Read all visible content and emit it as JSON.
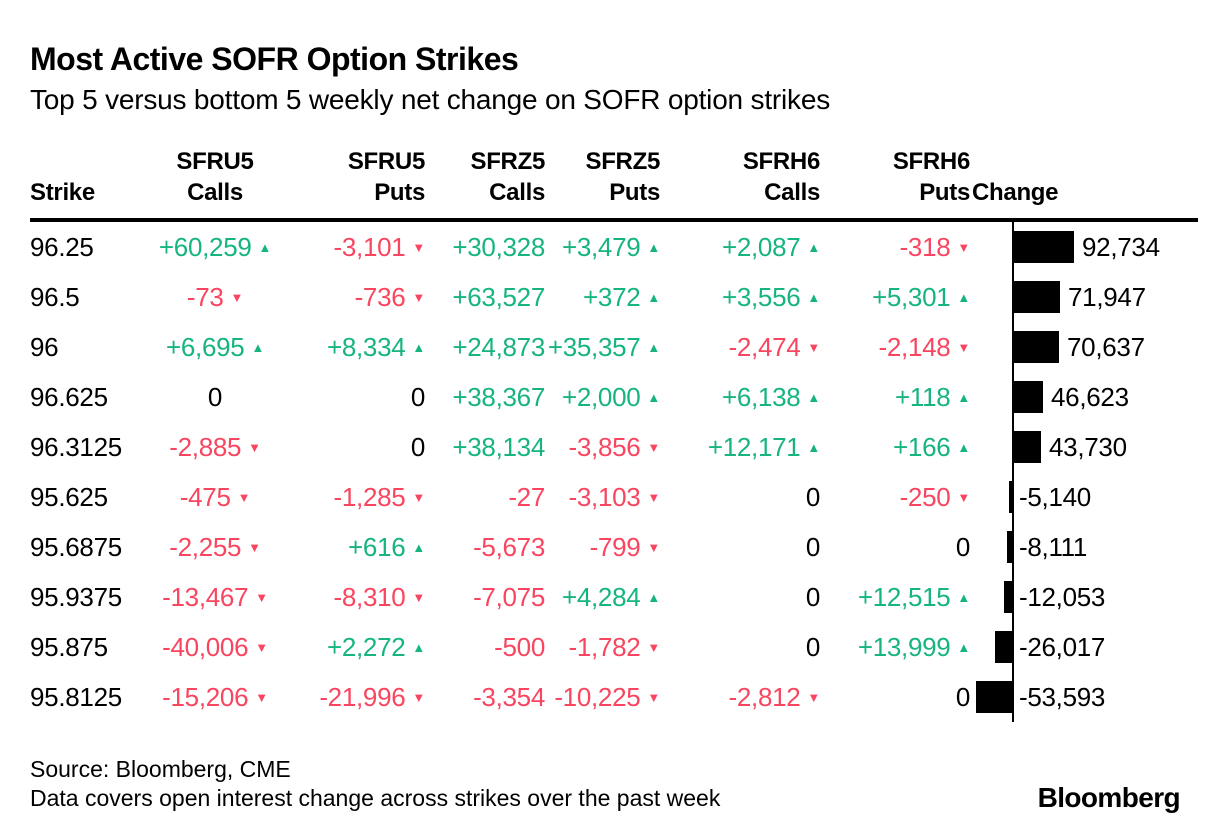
{
  "title": "Most Active SOFR Option Strikes",
  "subtitle": "Top 5 versus bottom 5 weekly net change on SOFR option strikes",
  "colors": {
    "green": "#17b57e",
    "red": "#f9455f",
    "text": "#000000",
    "bar": "#000000"
  },
  "icons": {
    "up": "▲",
    "down": "▼"
  },
  "table": {
    "columns": [
      {
        "line1": "",
        "line2": "Strike"
      },
      {
        "line1": "SFRU5",
        "line2": "Calls"
      },
      {
        "line1": "SFRU5",
        "line2": "Puts"
      },
      {
        "line1": "SFRZ5",
        "line2": "Calls"
      },
      {
        "line1": "SFRZ5",
        "line2": "Puts"
      },
      {
        "line1": "SFRH6",
        "line2": "Calls"
      },
      {
        "line1": "SFRH6",
        "line2": "Puts"
      },
      {
        "line1": "",
        "line2": "Change"
      }
    ],
    "rows": [
      {
        "strike": "96.25",
        "cells": [
          {
            "v": "+60,259",
            "d": "up"
          },
          {
            "v": "-3,101",
            "d": "down"
          },
          {
            "v": "+30,328",
            "d": ""
          },
          {
            "v": "+3,479",
            "d": "up"
          },
          {
            "v": "+2,087",
            "d": "up"
          },
          {
            "v": "-318",
            "d": "down"
          }
        ],
        "change": 92734,
        "change_label": "92,734"
      },
      {
        "strike": "96.5",
        "cells": [
          {
            "v": "-73",
            "d": "down"
          },
          {
            "v": "-736",
            "d": "down"
          },
          {
            "v": "+63,527",
            "d": ""
          },
          {
            "v": "+372",
            "d": "up"
          },
          {
            "v": "+3,556",
            "d": "up"
          },
          {
            "v": "+5,301",
            "d": "up"
          }
        ],
        "change": 71947,
        "change_label": "71,947"
      },
      {
        "strike": "96",
        "cells": [
          {
            "v": "+6,695",
            "d": "up"
          },
          {
            "v": "+8,334",
            "d": "up"
          },
          {
            "v": "+24,873",
            "d": ""
          },
          {
            "v": "+35,357",
            "d": "up"
          },
          {
            "v": "-2,474",
            "d": "down"
          },
          {
            "v": "-2,148",
            "d": "down"
          }
        ],
        "change": 70637,
        "change_label": "70,637"
      },
      {
        "strike": "96.625",
        "cells": [
          {
            "v": "0",
            "d": ""
          },
          {
            "v": "0",
            "d": ""
          },
          {
            "v": "+38,367",
            "d": ""
          },
          {
            "v": "+2,000",
            "d": "up"
          },
          {
            "v": "+6,138",
            "d": "up"
          },
          {
            "v": "+118",
            "d": "up"
          }
        ],
        "change": 46623,
        "change_label": "46,623"
      },
      {
        "strike": "96.3125",
        "cells": [
          {
            "v": "-2,885",
            "d": "down"
          },
          {
            "v": "0",
            "d": ""
          },
          {
            "v": "+38,134",
            "d": ""
          },
          {
            "v": "-3,856",
            "d": "down"
          },
          {
            "v": "+12,171",
            "d": "up"
          },
          {
            "v": "+166",
            "d": "up"
          }
        ],
        "change": 43730,
        "change_label": "43,730"
      },
      {
        "strike": "95.625",
        "cells": [
          {
            "v": "-475",
            "d": "down"
          },
          {
            "v": "-1,285",
            "d": "down"
          },
          {
            "v": "-27",
            "d": ""
          },
          {
            "v": "-3,103",
            "d": "down"
          },
          {
            "v": "0",
            "d": ""
          },
          {
            "v": "-250",
            "d": "down"
          }
        ],
        "change": -5140,
        "change_label": "-5,140"
      },
      {
        "strike": "95.6875",
        "cells": [
          {
            "v": "-2,255",
            "d": "down"
          },
          {
            "v": "+616",
            "d": "up"
          },
          {
            "v": "-5,673",
            "d": ""
          },
          {
            "v": "-799",
            "d": "down"
          },
          {
            "v": "0",
            "d": ""
          },
          {
            "v": "0",
            "d": ""
          }
        ],
        "change": -8111,
        "change_label": "-8,111"
      },
      {
        "strike": "95.9375",
        "cells": [
          {
            "v": "-13,467",
            "d": "down"
          },
          {
            "v": "-8,310",
            "d": "down"
          },
          {
            "v": "-7,075",
            "d": ""
          },
          {
            "v": "+4,284",
            "d": "up"
          },
          {
            "v": "0",
            "d": ""
          },
          {
            "v": "+12,515",
            "d": "up"
          }
        ],
        "change": -12053,
        "change_label": "-12,053"
      },
      {
        "strike": "95.875",
        "cells": [
          {
            "v": "-40,006",
            "d": "down"
          },
          {
            "v": "+2,272",
            "d": "up"
          },
          {
            "v": "-500",
            "d": ""
          },
          {
            "v": "-1,782",
            "d": "down"
          },
          {
            "v": "0",
            "d": ""
          },
          {
            "v": "+13,999",
            "d": "up"
          }
        ],
        "change": -26017,
        "change_label": "-26,017"
      },
      {
        "strike": "95.8125",
        "cells": [
          {
            "v": "-15,206",
            "d": "down"
          },
          {
            "v": "-21,996",
            "d": "down"
          },
          {
            "v": "-3,354",
            "d": ""
          },
          {
            "v": "-10,225",
            "d": "down"
          },
          {
            "v": "-2,812",
            "d": "down"
          },
          {
            "v": "0",
            "d": ""
          }
        ],
        "change": -53593,
        "change_label": "-53,593"
      }
    ]
  },
  "chart_data": {
    "type": "table",
    "title": "Most Active SOFR Option Strikes",
    "subtitle": "Top 5 versus bottom 5 weekly net change on SOFR option strikes",
    "columns": [
      "Strike",
      "SFRU5 Calls",
      "SFRU5 Puts",
      "SFRZ5 Calls",
      "SFRZ5 Puts",
      "SFRH6 Calls",
      "SFRH6 Puts",
      "Change"
    ],
    "rows": [
      [
        "96.25",
        60259,
        -3101,
        30328,
        3479,
        2087,
        -318,
        92734
      ],
      [
        "96.5",
        -73,
        -736,
        63527,
        372,
        3556,
        5301,
        71947
      ],
      [
        "96",
        6695,
        8334,
        24873,
        35357,
        -2474,
        -2148,
        70637
      ],
      [
        "96.625",
        0,
        0,
        38367,
        2000,
        6138,
        118,
        46623
      ],
      [
        "96.3125",
        -2885,
        0,
        38134,
        -3856,
        12171,
        166,
        43730
      ],
      [
        "95.625",
        -475,
        -1285,
        -27,
        -3103,
        0,
        -250,
        -5140
      ],
      [
        "95.6875",
        -2255,
        616,
        -5673,
        -799,
        0,
        0,
        -8111
      ],
      [
        "95.9375",
        -13467,
        -8310,
        -7075,
        4284,
        0,
        12515,
        -12053
      ],
      [
        "95.875",
        -40006,
        2272,
        -500,
        -1782,
        0,
        13999,
        -26017
      ],
      [
        "95.8125",
        -15206,
        -21996,
        -3354,
        -10225,
        -2812,
        0,
        -53593
      ]
    ],
    "bar_series": {
      "name": "Change",
      "categories": [
        "96.25",
        "96.5",
        "96",
        "96.625",
        "96.3125",
        "95.625",
        "95.6875",
        "95.9375",
        "95.875",
        "95.8125"
      ],
      "values": [
        92734,
        71947,
        70637,
        46623,
        43730,
        -5140,
        -8111,
        -12053,
        -26017,
        -53593
      ]
    },
    "bar_color": "#000000",
    "positive_color": "#17b57e",
    "negative_color": "#f9455f",
    "legend": "none",
    "grid": "off"
  },
  "footer": {
    "source": "Source: Bloomberg, CME",
    "note": "Data covers open interest change across strikes over the past week",
    "logo": "Bloomberg"
  }
}
